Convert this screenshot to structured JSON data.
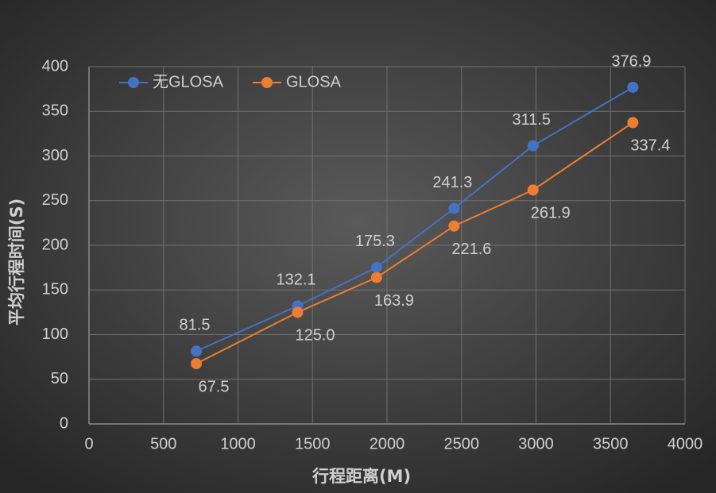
{
  "chart_data": {
    "type": "line",
    "x_label": "行程距离(M)",
    "y_label": "平均行程时间(S)",
    "x": [
      720,
      1400,
      1930,
      2450,
      2980,
      3650
    ],
    "series": [
      {
        "name": "无GLOSA",
        "color": "#4472c4",
        "values": [
          81.5,
          132.1,
          175.3,
          241.3,
          311.5,
          376.9
        ],
        "value_labels": [
          "81.5",
          "132.1",
          "175.3",
          "241.3",
          "311.5",
          "376.9"
        ]
      },
      {
        "name": "GLOSA",
        "color": "#ed7d31",
        "values": [
          67.5,
          125.0,
          163.9,
          221.6,
          261.9,
          337.4
        ],
        "value_labels": [
          "67.5",
          "125.0",
          "163.9",
          "221.6",
          "261.9",
          "337.4"
        ]
      }
    ],
    "xlim": [
      0,
      4000
    ],
    "xticks": [
      0,
      500,
      1000,
      1500,
      2000,
      2500,
      3000,
      3500,
      4000
    ],
    "ylim": [
      0,
      400
    ],
    "yticks": [
      0,
      50,
      100,
      150,
      200,
      250,
      300,
      350,
      400
    ],
    "grid": true,
    "legend": "top-left"
  }
}
